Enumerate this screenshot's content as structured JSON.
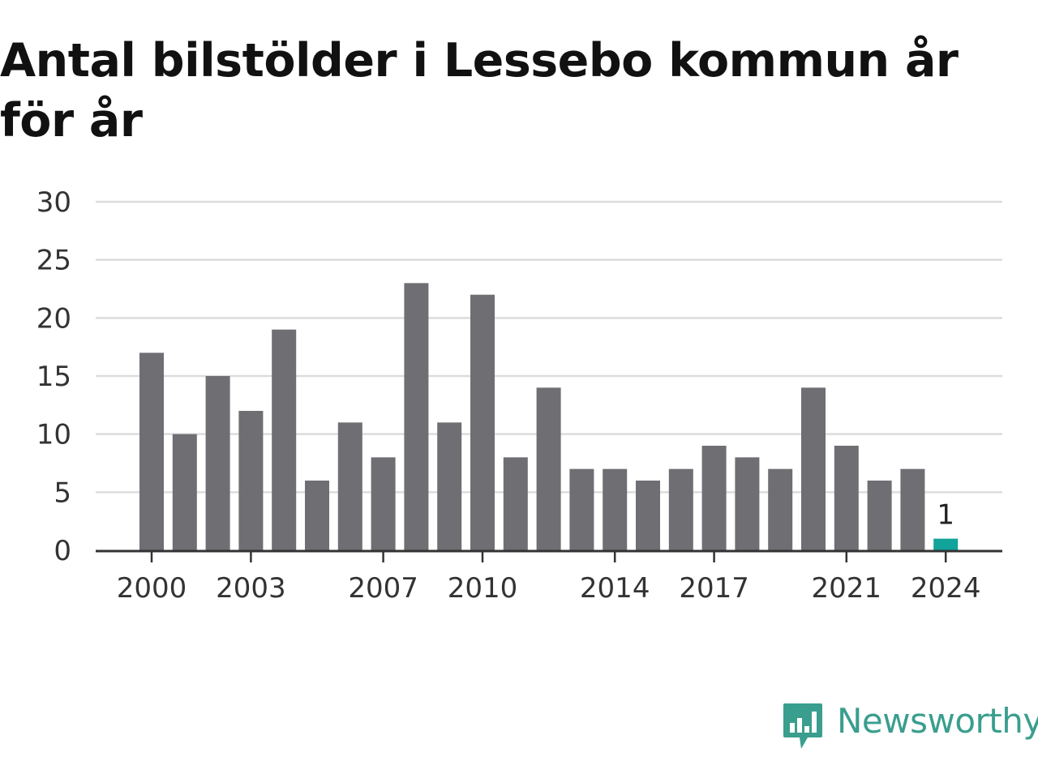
{
  "title": "Antal bilstölder i Lessebo kommun år för år",
  "brand": {
    "name": "Newsworthy",
    "color": "#3a9e8e"
  },
  "colors": {
    "bar": "#6f6e73",
    "highlight": "#12a39a",
    "grid": "#dcdcdc",
    "axis": "#333333"
  },
  "chart_data": {
    "type": "bar",
    "categories": [
      "2000",
      "2001",
      "2002",
      "2003",
      "2004",
      "2005",
      "2006",
      "2007",
      "2008",
      "2009",
      "2010",
      "2011",
      "2012",
      "2013",
      "2014",
      "2015",
      "2016",
      "2017",
      "2018",
      "2019",
      "2020",
      "2021",
      "2022",
      "2023",
      "2024"
    ],
    "values": [
      17,
      10,
      15,
      12,
      19,
      6,
      11,
      8,
      23,
      11,
      22,
      8,
      14,
      7,
      7,
      6,
      7,
      9,
      8,
      7,
      14,
      9,
      6,
      7,
      1
    ],
    "highlight_category": "2024",
    "data_labels": [
      {
        "category": "2024",
        "text": "1"
      }
    ],
    "x_tick_labels": [
      "2000",
      "2003",
      "2007",
      "2010",
      "2014",
      "2017",
      "2021",
      "2024"
    ],
    "y_ticks": [
      0,
      5,
      10,
      15,
      20,
      25,
      30
    ],
    "ylim": [
      0,
      30
    ],
    "grid": true,
    "title": "Antal bilstölder i Lessebo kommun år för år",
    "xlabel": "",
    "ylabel": ""
  }
}
